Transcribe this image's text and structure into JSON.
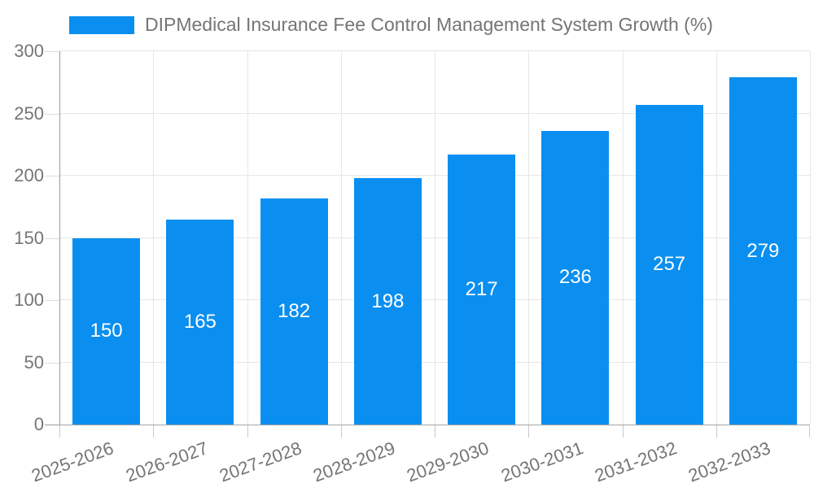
{
  "legend": {
    "label": "DIPMedical Insurance Fee Control Management System Growth (%)",
    "swatch_color": "#0a8ff0",
    "position": "top-left"
  },
  "chart_data": {
    "type": "bar",
    "title": "",
    "xlabel": "",
    "ylabel": "",
    "categories": [
      "2025-2026",
      "2026-2027",
      "2027-2028",
      "2028-2029",
      "2029-2030",
      "2030-2031",
      "2031-2032",
      "2032-2033"
    ],
    "series": [
      {
        "name": "DIPMedical Insurance Fee Control Management System Growth (%)",
        "values": [
          150,
          165,
          182,
          198,
          217,
          236,
          257,
          279
        ]
      }
    ],
    "value_labels": [
      "150",
      "165",
      "182",
      "198",
      "217",
      "236",
      "257",
      "279"
    ],
    "ylim": [
      0,
      300
    ],
    "yticks": [
      0,
      50,
      100,
      150,
      200,
      250,
      300
    ],
    "grid": "horizontal-and-vertical",
    "legend_position": "top-left",
    "colors": {
      "bar": "#0a8ff0",
      "value_label": "#ffffff",
      "axis_text": "#757575",
      "gridline": "#e6e6e6",
      "axis_line": "#9a9a9a"
    },
    "x_label_rotation_deg": -20
  }
}
